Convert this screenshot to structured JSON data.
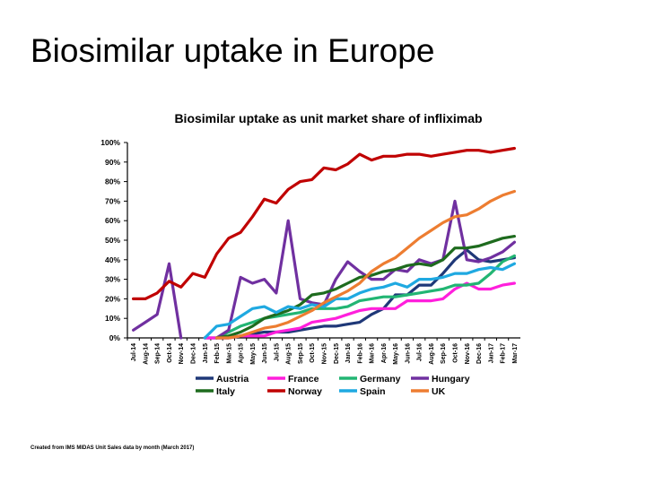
{
  "slide": {
    "title": "Biosimilar uptake in Europe",
    "footnote": "Created from IMS MIDAS Unit Sales data by month (March 2017)"
  },
  "chart_data": {
    "type": "line",
    "title": "Biosimilar uptake as unit market share of infliximab",
    "xlabel": "",
    "ylabel": "",
    "ylim": [
      0,
      100
    ],
    "yticks": [
      "0%",
      "10%",
      "20%",
      "30%",
      "40%",
      "50%",
      "60%",
      "70%",
      "80%",
      "90%",
      "100%"
    ],
    "grid": false,
    "legend_position": "bottom",
    "categories": [
      "Jul-14",
      "Aug-14",
      "Sep-14",
      "Oct-14",
      "Nov-14",
      "Dec-14",
      "Jan-15",
      "Feb-15",
      "Mar-15",
      "Apr-15",
      "May-15",
      "Jun-15",
      "Jul-15",
      "Aug-15",
      "Sep-15",
      "Oct-15",
      "Nov-15",
      "Dec-15",
      "Jan-16",
      "Feb-16",
      "Mar-16",
      "Apr-16",
      "May-16",
      "Jun-16",
      "Jul-16",
      "Aug-16",
      "Sep-16",
      "Oct-16",
      "Nov-16",
      "Dec-16",
      "Jan-17",
      "Feb-17",
      "Mar-17"
    ],
    "series": [
      {
        "name": "Austria",
        "color": "#1f3878",
        "values": [
          null,
          null,
          null,
          null,
          null,
          null,
          0,
          0,
          0,
          1,
          2,
          3,
          3,
          3,
          4,
          5,
          6,
          6,
          7,
          8,
          12,
          15,
          22,
          22,
          27,
          27,
          33,
          40,
          45,
          40,
          39,
          40,
          41
        ]
      },
      {
        "name": "France",
        "color": "#ff1fdc",
        "values": [
          null,
          null,
          null,
          null,
          null,
          null,
          0,
          0,
          0,
          1,
          1,
          1,
          3,
          4,
          5,
          8,
          9,
          10,
          12,
          14,
          15,
          15,
          15,
          19,
          19,
          19,
          20,
          25,
          28,
          25,
          25,
          27,
          28
        ]
      },
      {
        "name": "Germany",
        "color": "#22b573",
        "values": [
          null,
          null,
          null,
          null,
          null,
          null,
          null,
          0,
          3,
          6,
          8,
          10,
          11,
          12,
          13,
          15,
          15,
          15,
          16,
          19,
          20,
          21,
          21,
          22,
          23,
          24,
          25,
          27,
          27,
          28,
          33,
          39,
          42
        ]
      },
      {
        "name": "Hungary",
        "color": "#7030a0",
        "values": [
          4,
          8,
          12,
          38,
          0,
          null,
          null,
          0,
          4,
          31,
          28,
          30,
          23,
          60,
          20,
          18,
          17,
          30,
          39,
          34,
          30,
          30,
          35,
          34,
          40,
          38,
          40,
          70,
          40,
          39,
          41,
          44,
          49
        ]
      },
      {
        "name": "Italy",
        "color": "#1e6b1e",
        "values": [
          null,
          null,
          null,
          null,
          null,
          null,
          null,
          0,
          1,
          3,
          6,
          10,
          12,
          14,
          17,
          22,
          23,
          25,
          28,
          31,
          32,
          34,
          35,
          37,
          38,
          37,
          40,
          46,
          46,
          47,
          49,
          51,
          52
        ]
      },
      {
        "name": "Norway",
        "color": "#c00000",
        "values": [
          20,
          20,
          23,
          29,
          26,
          33,
          31,
          43,
          51,
          54,
          62,
          71,
          69,
          76,
          80,
          81,
          87,
          86,
          89,
          94,
          91,
          93,
          93,
          94,
          94,
          93,
          94,
          95,
          96,
          96,
          95,
          96,
          97
        ]
      },
      {
        "name": "Spain",
        "color": "#1fa9e1",
        "values": [
          null,
          null,
          null,
          null,
          null,
          null,
          0,
          6,
          7,
          11,
          15,
          16,
          13,
          16,
          15,
          17,
          16,
          20,
          20,
          23,
          25,
          26,
          28,
          26,
          30,
          30,
          31,
          33,
          33,
          35,
          36,
          35,
          38
        ]
      },
      {
        "name": "UK",
        "color": "#ed7d31",
        "values": [
          null,
          null,
          null,
          null,
          null,
          null,
          null,
          0,
          0,
          1,
          3,
          5,
          6,
          8,
          11,
          14,
          18,
          21,
          24,
          28,
          34,
          38,
          41,
          46,
          51,
          55,
          59,
          62,
          63,
          66,
          70,
          73,
          75
        ]
      }
    ]
  }
}
